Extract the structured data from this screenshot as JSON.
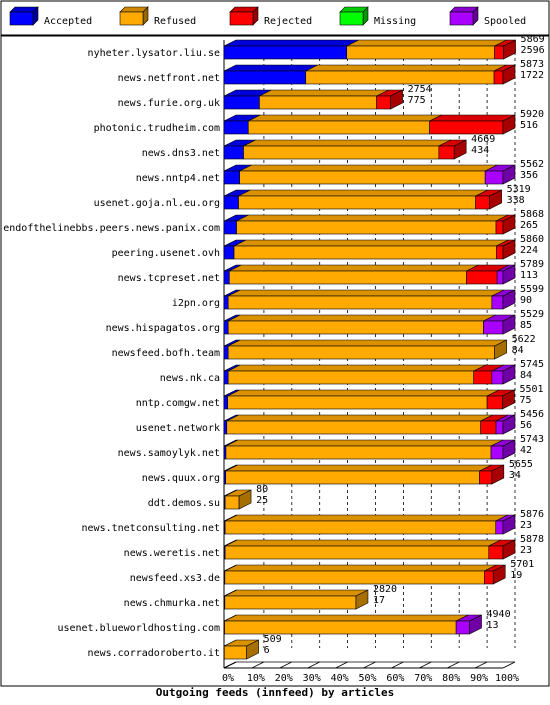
{
  "chart_data": {
    "type": "bar",
    "stacked": true,
    "orientation": "horizontal",
    "xlabel": "Outgoing feeds (innfeed) by articles",
    "xlim": [
      0,
      100
    ],
    "x_ticks": [
      "0%",
      "10%",
      "20%",
      "30%",
      "40%",
      "50%",
      "60%",
      "70%",
      "80%",
      "90%",
      "100%"
    ],
    "legend_position": "top",
    "grid": "vertical dashed",
    "legend": [
      {
        "name": "Accepted",
        "color": "#0000ff"
      },
      {
        "name": "Refused",
        "color": "#ffaa00"
      },
      {
        "name": "Rejected",
        "color": "#ff0000"
      },
      {
        "name": "Missing",
        "color": "#00ff00"
      },
      {
        "name": "Spooled",
        "color": "#aa00ff"
      }
    ],
    "categories": [
      "nyheter.lysator.liu.se",
      "news.netfront.net",
      "news.furie.org.uk",
      "photonic.trudheim.com",
      "news.dns3.net",
      "news.nntp4.net",
      "usenet.goja.nl.eu.org",
      "endofthelinebbs.peers.news.panix.com",
      "peering.usenet.ovh",
      "news.tcpreset.net",
      "i2pn.org",
      "news.hispagatos.org",
      "newsfeed.bofh.team",
      "news.nk.ca",
      "nntp.comgw.net",
      "usenet.network",
      "news.samoylyk.net",
      "news.quux.org",
      "ddt.demos.su",
      "news.tnetconsulting.net",
      "news.weretis.net",
      "newsfeed.xs3.de",
      "news.chmurka.net",
      "usenet.blueworldhosting.com",
      "news.corradoroberto.it"
    ],
    "offered_labels": [
      "5869",
      "5873",
      "2754",
      "5920",
      "4669",
      "5562",
      "5319",
      "5868",
      "5860",
      "5789",
      "5599",
      "5529",
      "5622",
      "5745",
      "5501",
      "5456",
      "5743",
      "5655",
      "80",
      "5876",
      "5878",
      "5701",
      "2820",
      "4940",
      "509"
    ],
    "accepted_labels": [
      "2596",
      "1722",
      "775",
      "516",
      "434",
      "356",
      "338",
      "265",
      "224",
      "113",
      "90",
      "85",
      "84",
      "84",
      "75",
      "56",
      "42",
      "34",
      "25",
      "23",
      "23",
      "19",
      "17",
      "13",
      "6"
    ],
    "series": [
      {
        "name": "Accepted",
        "values": [
          44,
          29.3,
          12.7,
          8.7,
          7.0,
          5.6,
          5.2,
          4.5,
          3.6,
          1.9,
          1.5,
          1.5,
          1.5,
          1.5,
          1.3,
          1.0,
          0.7,
          0.6,
          0.4,
          0.4,
          0.4,
          0.3,
          0.3,
          0.2,
          0.1
        ]
      },
      {
        "name": "Refused",
        "values": [
          53,
          67.5,
          42,
          65,
          70,
          88,
          85,
          93,
          94,
          85,
          94.5,
          91.5,
          95.5,
          88,
          93,
          91,
          95,
          91,
          5,
          97,
          94.5,
          93,
          47,
          83,
          8
        ]
      },
      {
        "name": "Rejected",
        "values": [
          3.2,
          3.2,
          5,
          26.3,
          5.5,
          0,
          5,
          2.5,
          2.4,
          11,
          0,
          0,
          0,
          6.5,
          5.5,
          5.5,
          0,
          4.4,
          0,
          0,
          5.1,
          3.2,
          0,
          0,
          0
        ]
      },
      {
        "name": "Missing",
        "values": [
          0,
          0,
          0,
          0,
          0,
          0,
          0,
          0,
          0,
          0,
          0,
          0,
          0,
          0,
          0,
          0,
          0,
          0,
          0,
          0,
          0,
          0,
          0,
          0,
          0
        ]
      },
      {
        "name": "Spooled",
        "values": [
          0,
          0,
          0,
          0,
          0,
          6.4,
          0,
          0,
          0,
          2.1,
          4,
          7,
          0,
          4,
          0,
          2.5,
          4.3,
          0,
          0,
          2.6,
          0,
          0,
          0,
          4.8,
          0
        ]
      }
    ]
  }
}
